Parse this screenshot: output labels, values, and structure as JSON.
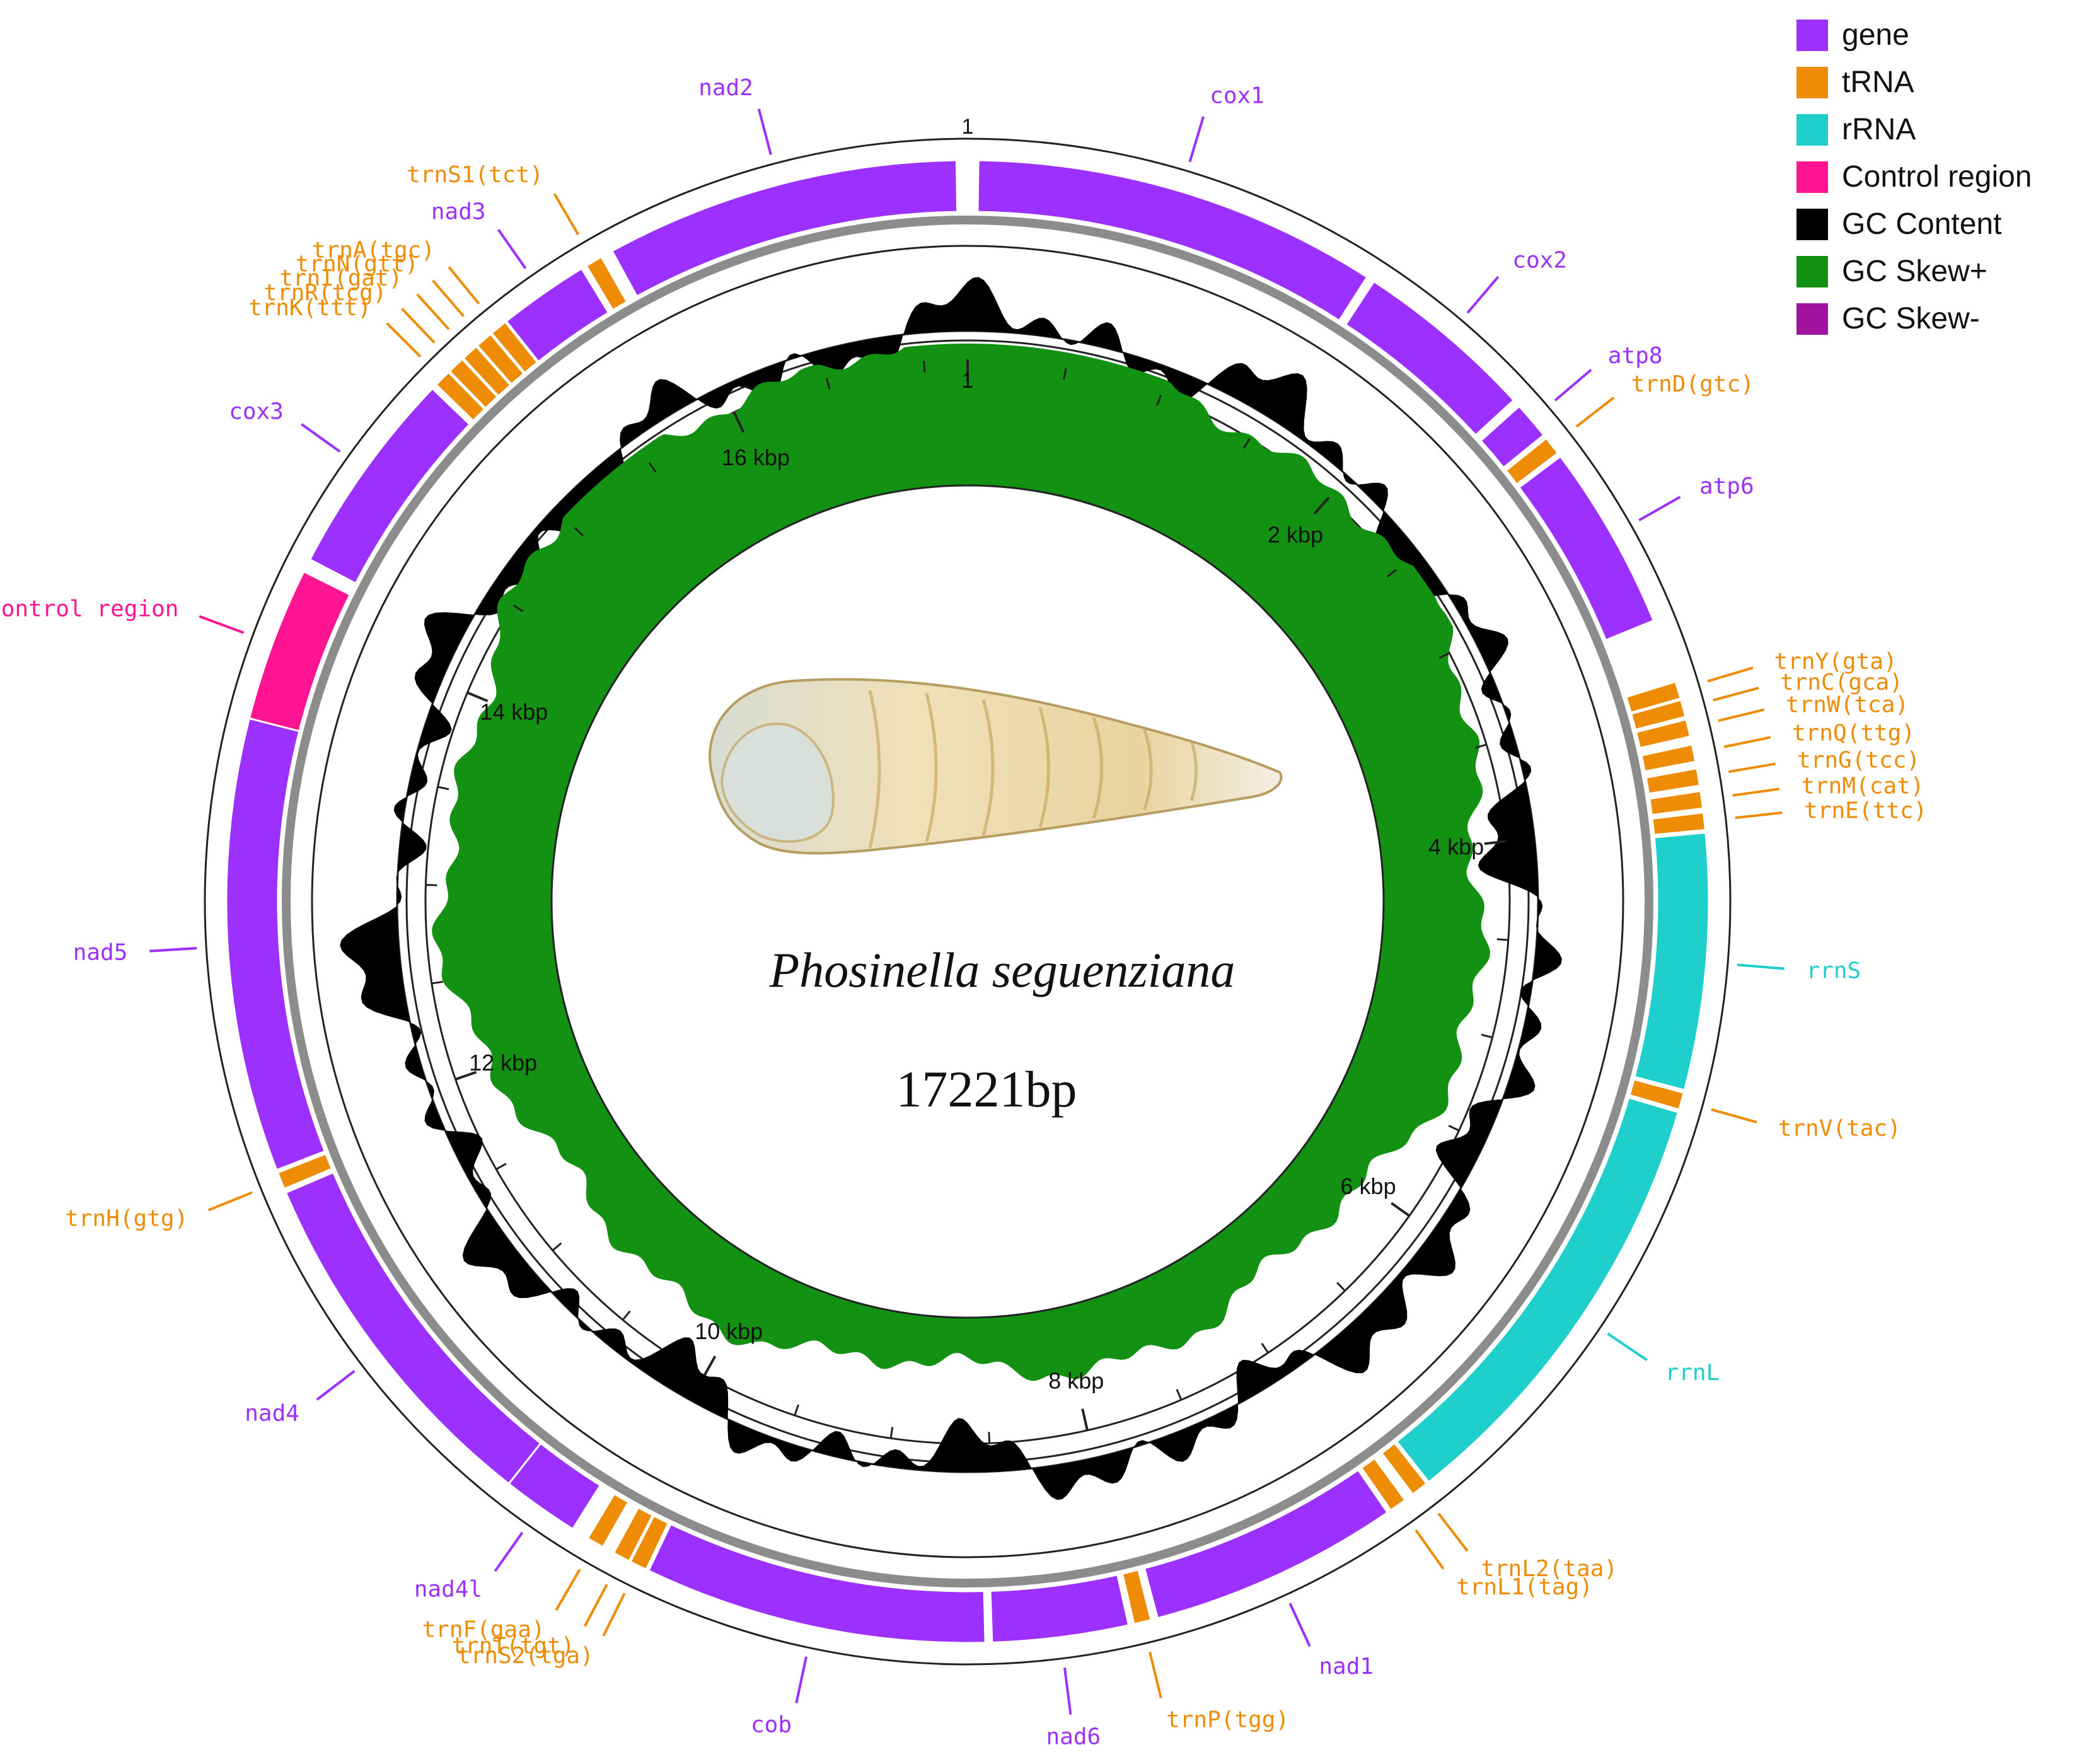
{
  "title": {
    "species": "Phosinella seguenziana",
    "length_label": "17221bp"
  },
  "genome_length": 17221,
  "colors": {
    "gene": "#9b30ff",
    "tRNA": "#ee8c06",
    "rRNA": "#1fcfcc",
    "control": "#ff1493",
    "gc_content": "#000000",
    "gc_skew_plus": "#129112",
    "gc_skew_minus": "#a0129f",
    "backbone": "#8c8c8c",
    "ring": "#222222"
  },
  "legend": [
    {
      "label": "gene",
      "color": "#9b30ff"
    },
    {
      "label": "tRNA",
      "color": "#ee8c06"
    },
    {
      "label": "rRNA",
      "color": "#1fcfcc"
    },
    {
      "label": "Control region",
      "color": "#ff1493"
    },
    {
      "label": "GC Content",
      "color": "#000000"
    },
    {
      "label": "GC Skew+",
      "color": "#129112"
    },
    {
      "label": "GC Skew-",
      "color": "#a0129f"
    }
  ],
  "scale_labels": [
    "2 kbp",
    "4 kbp",
    "6 kbp",
    "8 kbp",
    "10 kbp",
    "12 kbp",
    "14 kbp",
    "16 kbp"
  ],
  "scale_positions_bp": [
    2000,
    4000,
    6000,
    8000,
    10000,
    12000,
    14000,
    16000
  ],
  "features": [
    {
      "name": "cox1",
      "type": "gene",
      "start": 40,
      "end": 1560,
      "label": "cox1"
    },
    {
      "name": "cox2",
      "type": "gene",
      "start": 1590,
      "end": 2270,
      "label": "cox2"
    },
    {
      "name": "atp8",
      "type": "gene",
      "start": 2300,
      "end": 2440,
      "label": "atp8"
    },
    {
      "name": "trnD",
      "type": "tRNA",
      "start": 2455,
      "end": 2525,
      "label": "trnD(gtc)"
    },
    {
      "name": "atp6",
      "type": "gene",
      "start": 2540,
      "end": 3240,
      "label": "atp6"
    },
    {
      "name": "trnY",
      "type": "tRNA",
      "start": 3480,
      "end": 3545,
      "label": "trnY(gta)"
    },
    {
      "name": "trnC",
      "type": "tRNA",
      "start": 3550,
      "end": 3615,
      "label": "trnC(gca)"
    },
    {
      "name": "trnW",
      "type": "tRNA",
      "start": 3625,
      "end": 3690,
      "label": "trnW(tca)"
    },
    {
      "name": "trnQ",
      "type": "tRNA",
      "start": 3720,
      "end": 3785,
      "label": "trnQ(ttg)"
    },
    {
      "name": "trnG",
      "type": "tRNA",
      "start": 3810,
      "end": 3875,
      "label": "trnG(tcc)"
    },
    {
      "name": "trnM",
      "type": "tRNA",
      "start": 3895,
      "end": 3960,
      "label": "trnM(cat)"
    },
    {
      "name": "trnE",
      "type": "tRNA",
      "start": 3975,
      "end": 4040,
      "label": "trnE(ttc)"
    },
    {
      "name": "rrnS",
      "type": "rRNA",
      "start": 4050,
      "end": 5010,
      "label": "rrnS"
    },
    {
      "name": "trnV",
      "type": "tRNA",
      "start": 5020,
      "end": 5085,
      "label": "trnV(tac)"
    },
    {
      "name": "rrnL",
      "type": "rRNA",
      "start": 5095,
      "end": 6770,
      "label": "rrnL"
    },
    {
      "name": "trnL2",
      "type": "tRNA",
      "start": 6780,
      "end": 6845,
      "label": "trnL2(taa)"
    },
    {
      "name": "trnL1",
      "type": "tRNA",
      "start": 6880,
      "end": 6945,
      "label": "trnL1(tag)"
    },
    {
      "name": "nad1",
      "type": "gene",
      "start": 6960,
      "end": 7900,
      "label": "nad1"
    },
    {
      "name": "trnP",
      "type": "tRNA",
      "start": 7925,
      "end": 7990,
      "label": "trnP(tgg)"
    },
    {
      "name": "nad6",
      "type": "gene",
      "start": 8010,
      "end": 8520,
      "label": "nad6"
    },
    {
      "name": "cob",
      "type": "gene",
      "start": 8545,
      "end": 9830,
      "label": "cob"
    },
    {
      "name": "trnS2",
      "type": "tRNA",
      "start": 9840,
      "end": 9905,
      "label": "trnS2(tga)"
    },
    {
      "name": "trnT",
      "type": "tRNA",
      "start": 9910,
      "end": 9975,
      "label": "trnT(tgt)"
    },
    {
      "name": "trnF",
      "type": "tRNA",
      "start": 10020,
      "end": 10085,
      "label": "trnF(gaa)"
    },
    {
      "name": "nad4l",
      "type": "gene",
      "start": 10150,
      "end": 10440,
      "label": "nad4l"
    },
    {
      "name": "nad4",
      "type": "gene",
      "start": 10440,
      "end": 11810,
      "label": "nad4"
    },
    {
      "name": "trnH",
      "type": "tRNA",
      "start": 11825,
      "end": 11890,
      "label": "trnH(gtg)"
    },
    {
      "name": "nad5",
      "type": "gene",
      "start": 11900,
      "end": 13600,
      "label": "nad5"
    },
    {
      "name": "control",
      "type": "control",
      "start": 13600,
      "end": 14180,
      "label": "Control region"
    },
    {
      "name": "cox3",
      "type": "gene",
      "start": 14230,
      "end": 15010,
      "label": "cox3"
    },
    {
      "name": "trnK",
      "type": "tRNA",
      "start": 15030,
      "end": 15095,
      "label": "trnK(ttt)"
    },
    {
      "name": "trnR",
      "type": "tRNA",
      "start": 15100,
      "end": 15165,
      "label": "trnR(tcg)"
    },
    {
      "name": "trnI",
      "type": "tRNA",
      "start": 15170,
      "end": 15235,
      "label": "trnI(gat)"
    },
    {
      "name": "trnN",
      "type": "tRNA",
      "start": 15240,
      "end": 15305,
      "label": "trnN(gtt)"
    },
    {
      "name": "trnA",
      "type": "tRNA",
      "start": 15310,
      "end": 15375,
      "label": "trnA(tgc)"
    },
    {
      "name": "nad3",
      "type": "gene",
      "start": 15380,
      "end": 15720,
      "label": "nad3"
    },
    {
      "name": "trnS1",
      "type": "tRNA",
      "start": 15740,
      "end": 15805,
      "label": "trnS1(tct)"
    },
    {
      "name": "nad2",
      "type": "gene",
      "start": 15850,
      "end": 17180,
      "label": "nad2"
    }
  ]
}
